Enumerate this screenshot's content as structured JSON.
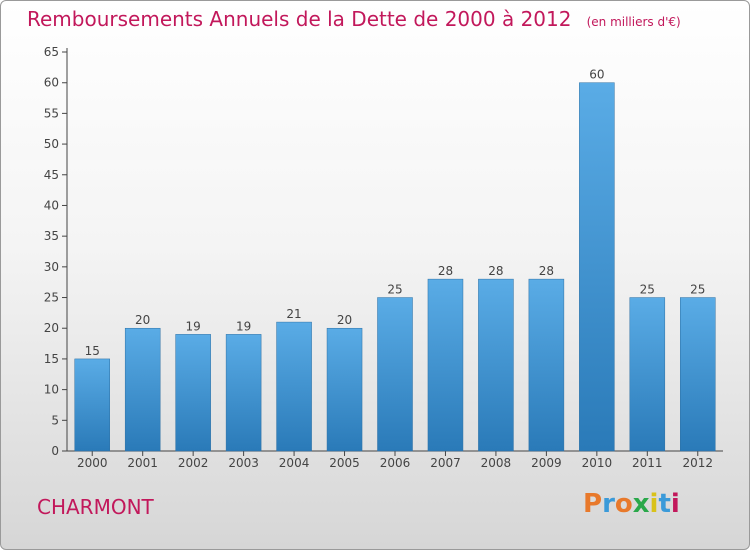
{
  "chart_data": {
    "type": "bar",
    "title": "Remboursements Annuels de la Dette de 2000 à 2012",
    "subtitle": "(en milliers d'€)",
    "categories": [
      "2000",
      "2001",
      "2002",
      "2003",
      "2004",
      "2005",
      "2006",
      "2007",
      "2008",
      "2009",
      "2010",
      "2011",
      "2012"
    ],
    "values": [
      15,
      20,
      19,
      19,
      21,
      20,
      25,
      28,
      28,
      28,
      60,
      25,
      25
    ],
    "ylim": [
      0,
      65
    ],
    "yticks": [
      0,
      5,
      10,
      15,
      20,
      25,
      30,
      35,
      40,
      45,
      50,
      55,
      60,
      65
    ],
    "grid": false,
    "colors": {
      "bar_top": "#5aace6",
      "bar_bottom": "#2a7ab8",
      "title": "#c2185b",
      "axis": "#444444"
    }
  },
  "commune": "CHARMONT",
  "brand": {
    "letters": [
      "P",
      "r",
      "o",
      "x",
      "i",
      "t",
      "i"
    ],
    "colors": [
      "#e8792b",
      "#3a9ad9",
      "#e8792b",
      "#2aa84a",
      "#d9c21a",
      "#3a9ad9",
      "#c2185b"
    ]
  }
}
